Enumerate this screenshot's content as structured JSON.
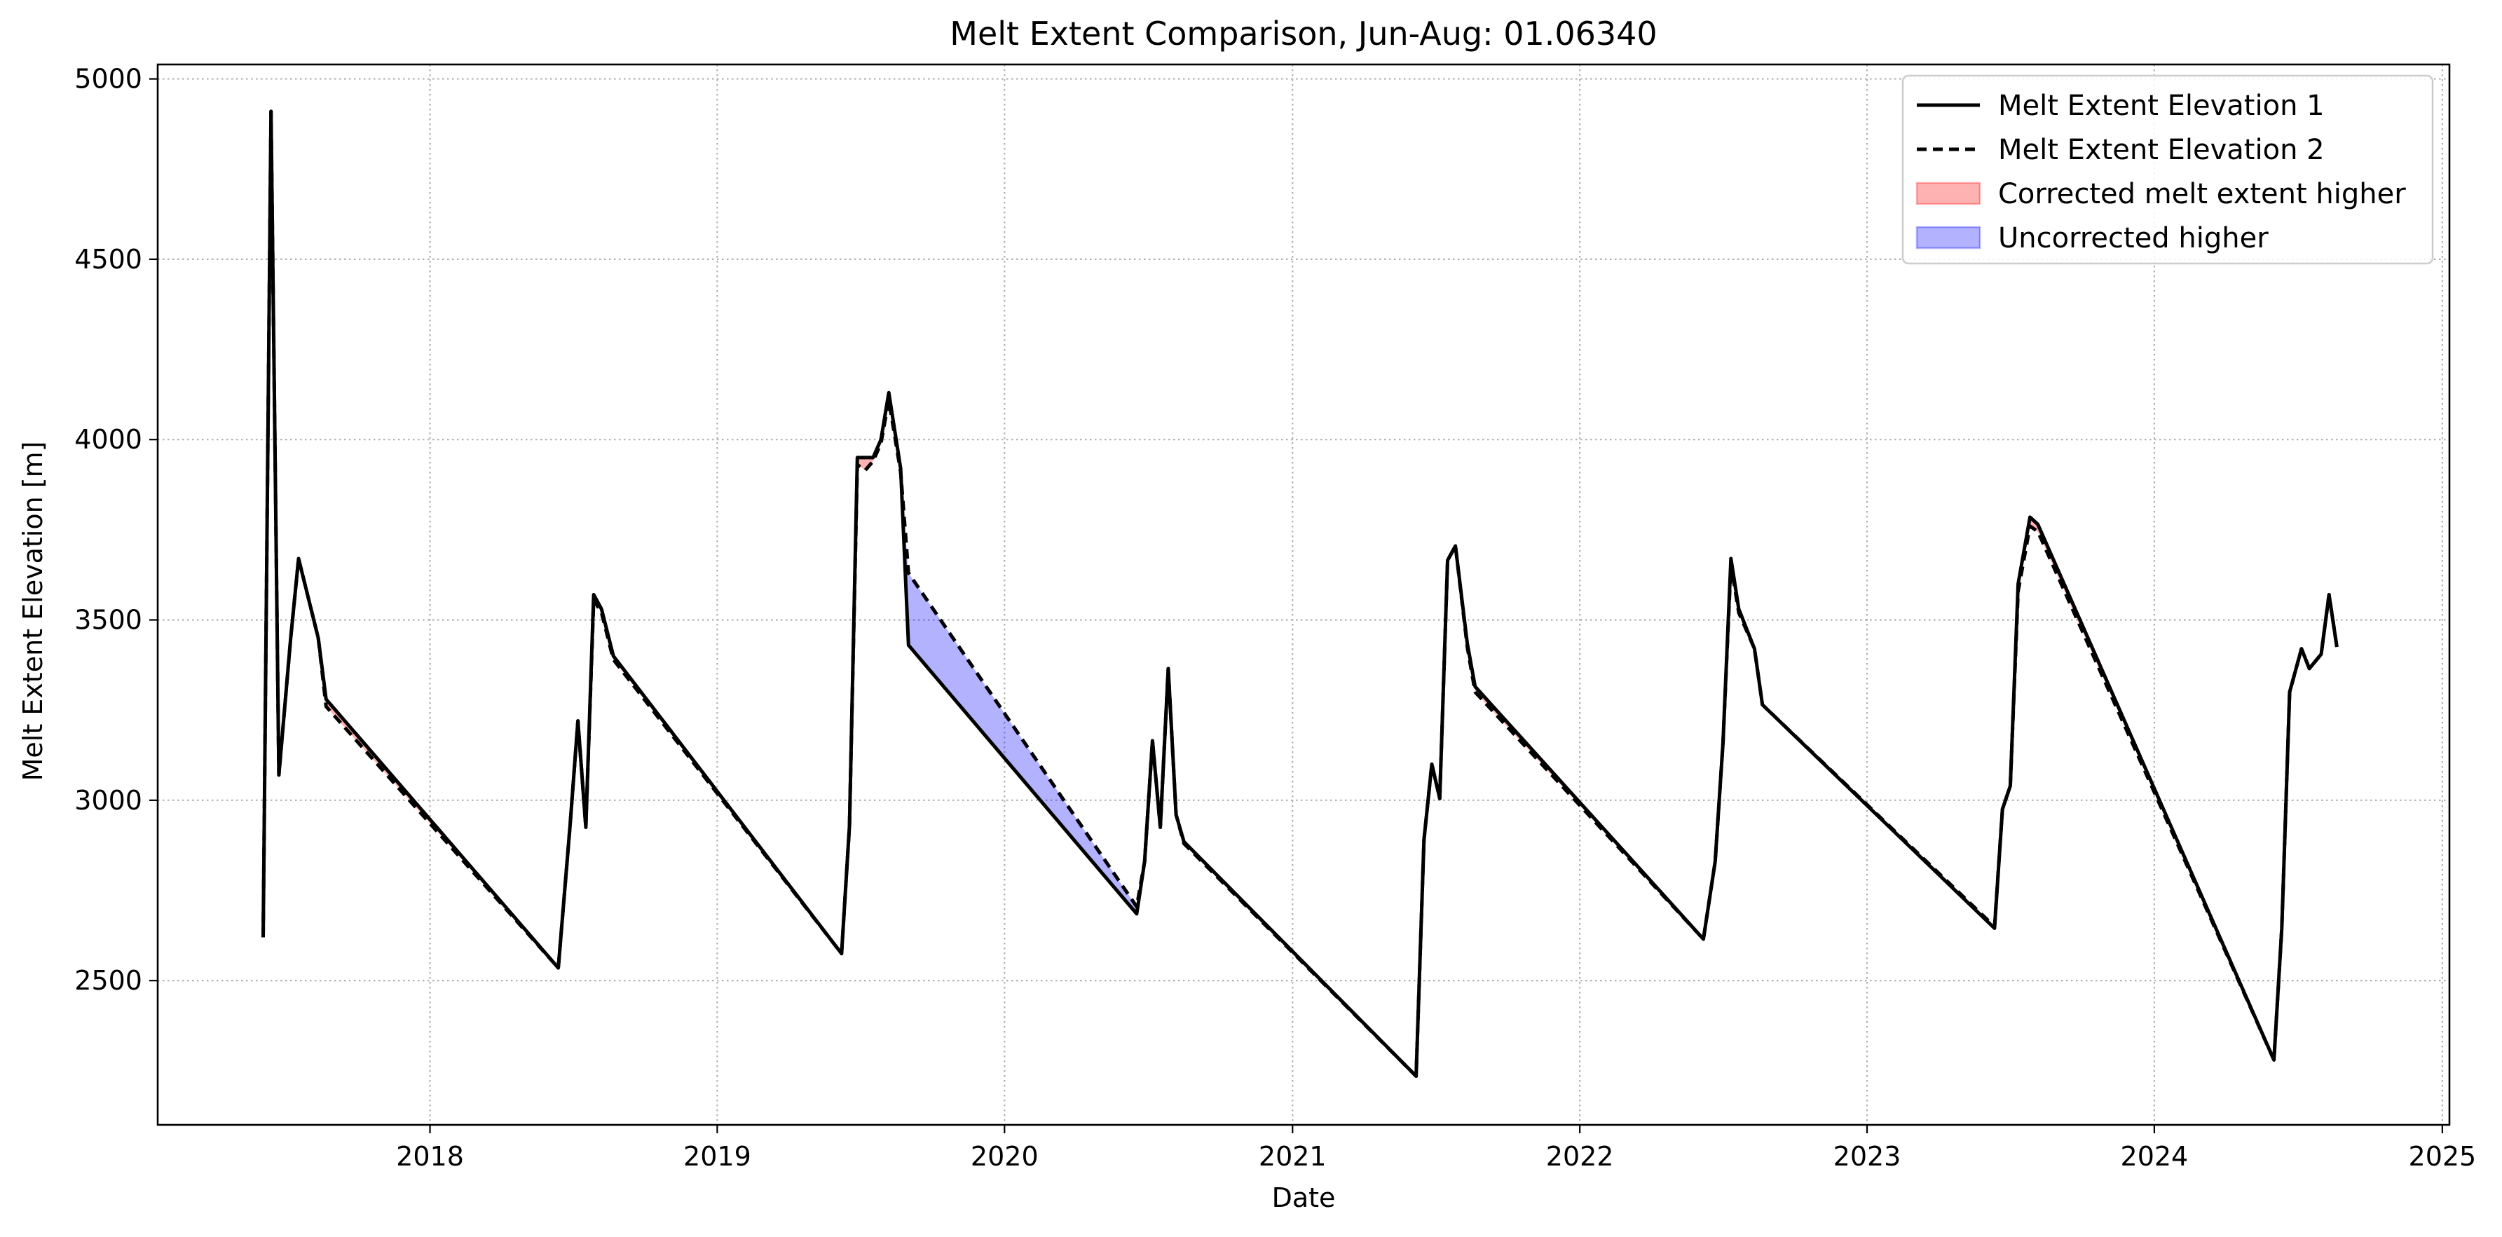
{
  "chart_data": {
    "type": "line",
    "title": "Melt Extent Comparison, Jun-Aug: 01.06340",
    "xlabel": "Date",
    "ylabel": "Melt Extent Elevation [m]",
    "xlim": [
      "2017-01-20",
      "2025-01-10"
    ],
    "ylim": [
      2100,
      5040
    ],
    "x_ticks": [
      "2018",
      "2019",
      "2020",
      "2021",
      "2022",
      "2023",
      "2024",
      "2025"
    ],
    "y_ticks": [
      2500,
      3000,
      3500,
      4000,
      4500,
      5000
    ],
    "grid": true,
    "legend_position": "top-right",
    "legend": [
      {
        "label": "Melt Extent Elevation 1",
        "kind": "line-solid",
        "color": "#000000"
      },
      {
        "label": "Melt Extent Elevation 2",
        "kind": "line-dashed",
        "color": "#000000"
      },
      {
        "label": "Corrected melt extent higher",
        "kind": "fill",
        "color": "#ff0000"
      },
      {
        "label": "Uncorrected higher",
        "kind": "fill",
        "color": "#0000ff"
      }
    ],
    "series": [
      {
        "name": "Melt Extent Elevation 1",
        "style": "solid",
        "points": [
          [
            "2017-06-03",
            2620
          ],
          [
            "2017-06-13",
            4910
          ],
          [
            "2017-06-23",
            3070
          ],
          [
            "2017-07-08",
            3450
          ],
          [
            "2017-07-18",
            3670
          ],
          [
            "2017-08-12",
            3450
          ],
          [
            "2017-08-22",
            3280
          ],
          [
            "2018-06-13",
            2535
          ],
          [
            "2018-06-28",
            2930
          ],
          [
            "2018-07-08",
            3220
          ],
          [
            "2018-07-18",
            2925
          ],
          [
            "2018-07-28",
            3570
          ],
          [
            "2018-08-07",
            3530
          ],
          [
            "2018-08-22",
            3400
          ],
          [
            "2019-06-08",
            2575
          ],
          [
            "2019-06-18",
            2930
          ],
          [
            "2019-06-28",
            3950
          ],
          [
            "2019-07-08",
            3950
          ],
          [
            "2019-07-18",
            3950
          ],
          [
            "2019-07-28",
            4000
          ],
          [
            "2019-08-07",
            4130
          ],
          [
            "2019-08-22",
            3920
          ],
          [
            "2019-09-01",
            3430
          ],
          [
            "2020-06-17",
            2685
          ],
          [
            "2020-06-27",
            2830
          ],
          [
            "2020-07-07",
            3165
          ],
          [
            "2020-07-17",
            2925
          ],
          [
            "2020-07-27",
            3365
          ],
          [
            "2020-08-06",
            2960
          ],
          [
            "2020-08-16",
            2885
          ],
          [
            "2021-06-07",
            2235
          ],
          [
            "2021-06-17",
            2890
          ],
          [
            "2021-06-27",
            3100
          ],
          [
            "2021-07-07",
            3005
          ],
          [
            "2021-07-17",
            3665
          ],
          [
            "2021-07-27",
            3705
          ],
          [
            "2021-08-11",
            3435
          ],
          [
            "2021-08-21",
            3315
          ],
          [
            "2022-06-07",
            2615
          ],
          [
            "2022-06-22",
            2830
          ],
          [
            "2022-07-02",
            3160
          ],
          [
            "2022-07-12",
            3670
          ],
          [
            "2022-07-22",
            3530
          ],
          [
            "2022-08-11",
            3420
          ],
          [
            "2022-08-21",
            3265
          ],
          [
            "2023-06-12",
            2645
          ],
          [
            "2023-06-22",
            2975
          ],
          [
            "2023-07-02",
            3040
          ],
          [
            "2023-07-12",
            3600
          ],
          [
            "2023-07-27",
            3785
          ],
          [
            "2023-08-06",
            3765
          ],
          [
            "2024-06-01",
            2280
          ],
          [
            "2024-06-11",
            2645
          ],
          [
            "2024-06-21",
            3300
          ],
          [
            "2024-07-06",
            3420
          ],
          [
            "2024-07-16",
            3365
          ],
          [
            "2024-07-31",
            3405
          ],
          [
            "2024-08-10",
            3570
          ],
          [
            "2024-08-20",
            3425
          ]
        ]
      },
      {
        "name": "Melt Extent Elevation 2",
        "style": "dashed",
        "points": [
          [
            "2017-06-03",
            2620
          ],
          [
            "2017-06-13",
            4910
          ],
          [
            "2017-06-23",
            3070
          ],
          [
            "2017-07-08",
            3450
          ],
          [
            "2017-07-18",
            3670
          ],
          [
            "2017-08-12",
            3450
          ],
          [
            "2017-08-22",
            3260
          ],
          [
            "2018-06-13",
            2535
          ],
          [
            "2018-06-28",
            2930
          ],
          [
            "2018-07-08",
            3220
          ],
          [
            "2018-07-18",
            2925
          ],
          [
            "2018-07-28",
            3555
          ],
          [
            "2018-08-07",
            3520
          ],
          [
            "2018-08-22",
            3390
          ],
          [
            "2019-06-08",
            2575
          ],
          [
            "2019-06-18",
            2930
          ],
          [
            "2019-06-28",
            3930
          ],
          [
            "2019-07-08",
            3915
          ],
          [
            "2019-07-18",
            3940
          ],
          [
            "2019-07-28",
            3990
          ],
          [
            "2019-08-07",
            4110
          ],
          [
            "2019-08-22",
            3910
          ],
          [
            "2019-09-01",
            3630
          ],
          [
            "2020-06-17",
            2705
          ],
          [
            "2020-06-27",
            2830
          ],
          [
            "2020-07-07",
            3165
          ],
          [
            "2020-07-17",
            2925
          ],
          [
            "2020-07-27",
            3365
          ],
          [
            "2020-08-06",
            2960
          ],
          [
            "2020-08-16",
            2880
          ],
          [
            "2021-06-07",
            2235
          ],
          [
            "2021-06-17",
            2890
          ],
          [
            "2021-06-27",
            3100
          ],
          [
            "2021-07-07",
            3005
          ],
          [
            "2021-07-17",
            3665
          ],
          [
            "2021-07-27",
            3705
          ],
          [
            "2021-08-11",
            3425
          ],
          [
            "2021-08-21",
            3300
          ],
          [
            "2022-06-07",
            2615
          ],
          [
            "2022-06-22",
            2830
          ],
          [
            "2022-07-02",
            3160
          ],
          [
            "2022-07-12",
            3655
          ],
          [
            "2022-07-22",
            3520
          ],
          [
            "2022-08-11",
            3420
          ],
          [
            "2022-08-21",
            3265
          ],
          [
            "2023-06-12",
            2650
          ],
          [
            "2023-06-22",
            2975
          ],
          [
            "2023-07-02",
            3040
          ],
          [
            "2023-07-12",
            3580
          ],
          [
            "2023-07-27",
            3760
          ],
          [
            "2023-08-06",
            3745
          ],
          [
            "2024-06-01",
            2280
          ],
          [
            "2024-06-11",
            2645
          ],
          [
            "2024-06-21",
            3300
          ],
          [
            "2024-07-06",
            3420
          ],
          [
            "2024-07-16",
            3365
          ],
          [
            "2024-07-31",
            3405
          ],
          [
            "2024-08-10",
            3570
          ],
          [
            "2024-08-20",
            3425
          ]
        ]
      }
    ]
  }
}
